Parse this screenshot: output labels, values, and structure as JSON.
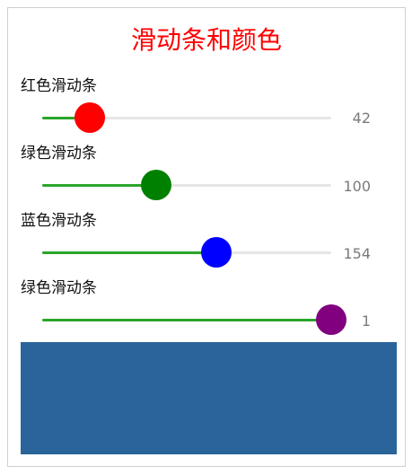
{
  "title": "滑动条和颜色",
  "sliders": [
    {
      "label": "红色滑动条",
      "value": "42",
      "thumb_color": "#ff0000",
      "fraction": 0.165
    },
    {
      "label": "绿色滑动条",
      "value": "100",
      "thumb_color": "#008000",
      "fraction": 0.394
    },
    {
      "label": "蓝色滑动条",
      "value": "154",
      "thumb_color": "#0000ff",
      "fraction": 0.604
    },
    {
      "label": "绿色滑动条",
      "value": "1",
      "thumb_color": "#800080",
      "fraction": 1.0
    }
  ],
  "track_fill_color": "#2aa52a",
  "swatch_color": "#2a649a"
}
